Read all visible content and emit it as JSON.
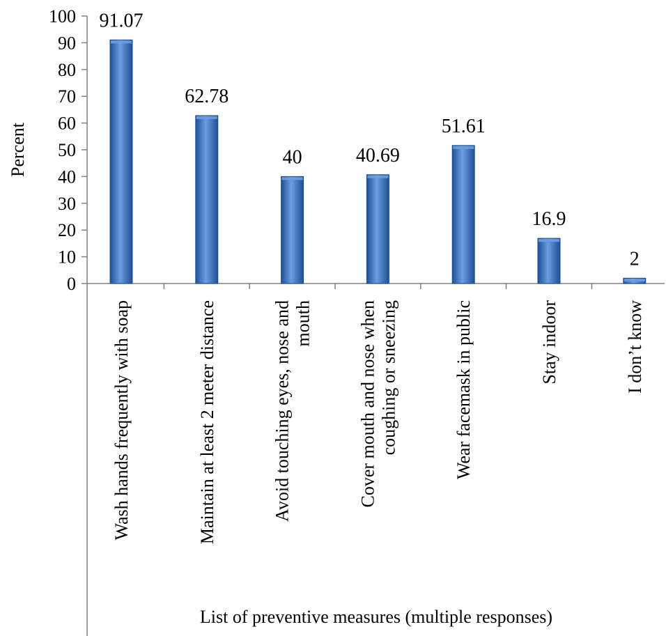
{
  "chart_data": {
    "type": "bar",
    "title": "",
    "xlabel": "List of preventive measures (multiple responses)",
    "ylabel": "Percent",
    "ylim": [
      0,
      100
    ],
    "yticks": [
      0,
      10,
      20,
      30,
      40,
      50,
      60,
      70,
      80,
      90,
      100
    ],
    "grid": false,
    "legend": "none",
    "categories": [
      "Wash hands frequently with soap",
      "Maintain at least 2 meter distance",
      "Avoid touching eyes, nose and mouth",
      "Cover mouth and nose when coughing or sneezing",
      "Wear facemask in public",
      "Stay indoor",
      "I don’t know"
    ],
    "category_lines": [
      [
        "Wash hands frequently with soap"
      ],
      [
        "Maintain at least 2 meter distance"
      ],
      [
        "Avoid touching eyes, nose and",
        "mouth"
      ],
      [
        "Cover mouth and nose when",
        "coughing or sneezing"
      ],
      [
        "Wear facemask in public"
      ],
      [
        "Stay indoor"
      ],
      [
        "I don’t know"
      ]
    ],
    "values": [
      91.07,
      62.78,
      40,
      40.69,
      51.61,
      16.9,
      2
    ],
    "data_labels": [
      "91.07",
      "62.78",
      "40",
      "40.69",
      "51.61",
      "16.9",
      "2"
    ],
    "colors": {
      "bar_light": "#6b9de0",
      "bar_mid": "#3f74c4",
      "bar_dark": "#1f4f96",
      "axis": "#808080"
    }
  }
}
